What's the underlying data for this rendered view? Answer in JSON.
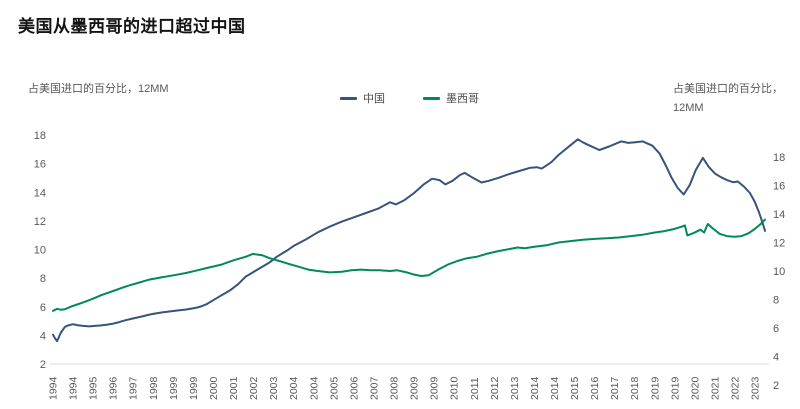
{
  "title": "美国从墨西哥的进口超过中国",
  "left_axis_caption": "占美国进口的百分比，12MM",
  "right_axis_caption": [
    "占美国进口的百分比，",
    "12MM"
  ],
  "legend": {
    "items": [
      {
        "label": "中国",
        "color": "#37547a"
      },
      {
        "label": "墨西哥",
        "color": "#008a5c"
      }
    ]
  },
  "colors": {
    "china_line": "#37547a",
    "mexico_line": "#008a5c",
    "axis_line": "#e2ded7",
    "tick_text": "#595959"
  },
  "chart_data": {
    "type": "line",
    "title": "美国从墨西哥的进口超过中国",
    "grid": false,
    "legend_position": "top-center",
    "x_axis": {
      "unit": "month",
      "start": "1994-01",
      "label_interval_months": 10,
      "tick_labels": [
        "1994",
        "1994",
        "1995",
        "1996",
        "1997",
        "1998",
        "1999",
        "1999",
        "2000",
        "2001",
        "2002",
        "2003",
        "2004",
        "2004",
        "2005",
        "2006",
        "2007",
        "2008",
        "2009",
        "2009",
        "2010",
        "2011",
        "2012",
        "2013",
        "2014",
        "2014",
        "2015",
        "2016",
        "2017",
        "2018",
        "2019",
        "2019",
        "2020",
        "2021",
        "2022",
        "2023"
      ]
    },
    "left_axis": {
      "caption": "占美国进口的百分比，12MM",
      "min": 2,
      "max": 18,
      "step": 2,
      "ticks": [
        2,
        4,
        6,
        8,
        10,
        12,
        14,
        16,
        18
      ]
    },
    "right_axis": {
      "caption": "占美国进口的百分比，12MM",
      "min": 2,
      "max": 18,
      "step": 2,
      "ticks": [
        2,
        4,
        6,
        8,
        10,
        12,
        14,
        16,
        18
      ],
      "offset_vs_left": true
    },
    "series": [
      {
        "name": "中国",
        "axis": "left",
        "color": "#37547a",
        "points": [
          [
            1994.0,
            4.05
          ],
          [
            1994.08,
            3.8
          ],
          [
            1994.17,
            3.6
          ],
          [
            1994.33,
            4.2
          ],
          [
            1994.5,
            4.6
          ],
          [
            1994.67,
            4.72
          ],
          [
            1994.83,
            4.78
          ],
          [
            1995.0,
            4.72
          ],
          [
            1995.25,
            4.66
          ],
          [
            1995.5,
            4.63
          ],
          [
            1995.75,
            4.66
          ],
          [
            1996.0,
            4.7
          ],
          [
            1996.25,
            4.75
          ],
          [
            1996.5,
            4.82
          ],
          [
            1996.75,
            4.93
          ],
          [
            1997.0,
            5.05
          ],
          [
            1997.25,
            5.15
          ],
          [
            1997.5,
            5.25
          ],
          [
            1997.75,
            5.35
          ],
          [
            1998.0,
            5.45
          ],
          [
            1998.25,
            5.53
          ],
          [
            1998.5,
            5.6
          ],
          [
            1998.75,
            5.65
          ],
          [
            1999.0,
            5.7
          ],
          [
            1999.25,
            5.75
          ],
          [
            1999.5,
            5.8
          ],
          [
            1999.75,
            5.87
          ],
          [
            2000.0,
            5.95
          ],
          [
            2000.2,
            6.05
          ],
          [
            2000.4,
            6.2
          ],
          [
            2000.65,
            6.45
          ],
          [
            2000.9,
            6.7
          ],
          [
            2001.15,
            6.95
          ],
          [
            2001.4,
            7.2
          ],
          [
            2001.7,
            7.6
          ],
          [
            2002.0,
            8.1
          ],
          [
            2002.25,
            8.35
          ],
          [
            2002.5,
            8.6
          ],
          [
            2002.75,
            8.85
          ],
          [
            2003.0,
            9.1
          ],
          [
            2003.3,
            9.5
          ],
          [
            2003.7,
            9.9
          ],
          [
            2004.0,
            10.25
          ],
          [
            2004.5,
            10.7
          ],
          [
            2005.0,
            11.2
          ],
          [
            2005.5,
            11.6
          ],
          [
            2006.0,
            11.95
          ],
          [
            2006.5,
            12.25
          ],
          [
            2007.0,
            12.55
          ],
          [
            2007.5,
            12.85
          ],
          [
            2008.0,
            13.3
          ],
          [
            2008.25,
            13.15
          ],
          [
            2008.6,
            13.45
          ],
          [
            2009.0,
            13.95
          ],
          [
            2009.4,
            14.55
          ],
          [
            2009.75,
            14.95
          ],
          [
            2010.05,
            14.85
          ],
          [
            2010.3,
            14.55
          ],
          [
            2010.6,
            14.8
          ],
          [
            2010.9,
            15.2
          ],
          [
            2011.1,
            15.35
          ],
          [
            2011.4,
            15.05
          ],
          [
            2011.8,
            14.68
          ],
          [
            2012.1,
            14.8
          ],
          [
            2012.5,
            15.0
          ],
          [
            2012.9,
            15.25
          ],
          [
            2013.3,
            15.45
          ],
          [
            2013.8,
            15.7
          ],
          [
            2014.1,
            15.75
          ],
          [
            2014.3,
            15.65
          ],
          [
            2014.7,
            16.1
          ],
          [
            2015.0,
            16.6
          ],
          [
            2015.4,
            17.15
          ],
          [
            2015.8,
            17.7
          ],
          [
            2016.0,
            17.5
          ],
          [
            2016.3,
            17.25
          ],
          [
            2016.7,
            16.95
          ],
          [
            2017.1,
            17.2
          ],
          [
            2017.6,
            17.55
          ],
          [
            2017.9,
            17.45
          ],
          [
            2018.2,
            17.5
          ],
          [
            2018.5,
            17.55
          ],
          [
            2018.9,
            17.25
          ],
          [
            2019.2,
            16.7
          ],
          [
            2019.45,
            15.9
          ],
          [
            2019.7,
            15.0
          ],
          [
            2019.95,
            14.3
          ],
          [
            2020.2,
            13.85
          ],
          [
            2020.45,
            14.5
          ],
          [
            2020.7,
            15.55
          ],
          [
            2021.0,
            16.4
          ],
          [
            2021.25,
            15.75
          ],
          [
            2021.5,
            15.3
          ],
          [
            2021.75,
            15.05
          ],
          [
            2022.0,
            14.85
          ],
          [
            2022.25,
            14.7
          ],
          [
            2022.45,
            14.75
          ],
          [
            2022.7,
            14.4
          ],
          [
            2022.95,
            13.95
          ],
          [
            2023.15,
            13.35
          ],
          [
            2023.33,
            12.6
          ],
          [
            2023.47,
            11.9
          ],
          [
            2023.58,
            11.3
          ]
        ]
      },
      {
        "name": "墨西哥",
        "axis": "right",
        "color": "#008a5c",
        "points": [
          [
            1994.0,
            7.2
          ],
          [
            1994.17,
            7.35
          ],
          [
            1994.33,
            7.28
          ],
          [
            1994.5,
            7.32
          ],
          [
            1994.75,
            7.5
          ],
          [
            1995.0,
            7.65
          ],
          [
            1995.25,
            7.8
          ],
          [
            1995.5,
            7.95
          ],
          [
            1995.75,
            8.12
          ],
          [
            1996.0,
            8.3
          ],
          [
            1996.25,
            8.45
          ],
          [
            1996.5,
            8.6
          ],
          [
            1996.75,
            8.75
          ],
          [
            1997.0,
            8.9
          ],
          [
            1997.25,
            9.03
          ],
          [
            1997.5,
            9.15
          ],
          [
            1997.75,
            9.28
          ],
          [
            1998.0,
            9.4
          ],
          [
            1998.5,
            9.55
          ],
          [
            1999.0,
            9.7
          ],
          [
            1999.5,
            9.85
          ],
          [
            2000.0,
            10.05
          ],
          [
            2000.5,
            10.25
          ],
          [
            2001.0,
            10.45
          ],
          [
            2001.5,
            10.75
          ],
          [
            2002.0,
            11.0
          ],
          [
            2002.3,
            11.2
          ],
          [
            2002.7,
            11.1
          ],
          [
            2003.0,
            10.9
          ],
          [
            2003.4,
            10.7
          ],
          [
            2003.8,
            10.5
          ],
          [
            2004.2,
            10.3
          ],
          [
            2004.6,
            10.1
          ],
          [
            2005.0,
            10.0
          ],
          [
            2005.5,
            9.9
          ],
          [
            2006.0,
            9.95
          ],
          [
            2006.4,
            10.05
          ],
          [
            2006.8,
            10.1
          ],
          [
            2007.2,
            10.05
          ],
          [
            2007.6,
            10.05
          ],
          [
            2008.0,
            10.0
          ],
          [
            2008.3,
            10.05
          ],
          [
            2008.7,
            9.9
          ],
          [
            2009.0,
            9.75
          ],
          [
            2009.3,
            9.65
          ],
          [
            2009.6,
            9.7
          ],
          [
            2010.0,
            10.1
          ],
          [
            2010.4,
            10.45
          ],
          [
            2010.8,
            10.7
          ],
          [
            2011.2,
            10.9
          ],
          [
            2011.6,
            11.0
          ],
          [
            2012.0,
            11.2
          ],
          [
            2012.5,
            11.4
          ],
          [
            2013.0,
            11.55
          ],
          [
            2013.3,
            11.65
          ],
          [
            2013.6,
            11.6
          ],
          [
            2014.0,
            11.7
          ],
          [
            2014.5,
            11.8
          ],
          [
            2015.0,
            12.0
          ],
          [
            2015.5,
            12.1
          ],
          [
            2016.0,
            12.2
          ],
          [
            2016.5,
            12.25
          ],
          [
            2017.0,
            12.3
          ],
          [
            2017.5,
            12.35
          ],
          [
            2018.0,
            12.45
          ],
          [
            2018.5,
            12.55
          ],
          [
            2019.0,
            12.7
          ],
          [
            2019.4,
            12.8
          ],
          [
            2019.8,
            12.95
          ],
          [
            2020.1,
            13.1
          ],
          [
            2020.25,
            13.2
          ],
          [
            2020.35,
            12.5
          ],
          [
            2020.6,
            12.65
          ],
          [
            2020.9,
            12.9
          ],
          [
            2021.05,
            12.7
          ],
          [
            2021.2,
            13.3
          ],
          [
            2021.4,
            13.0
          ],
          [
            2021.7,
            12.6
          ],
          [
            2022.0,
            12.45
          ],
          [
            2022.3,
            12.4
          ],
          [
            2022.6,
            12.45
          ],
          [
            2022.9,
            12.65
          ],
          [
            2023.15,
            12.95
          ],
          [
            2023.4,
            13.3
          ],
          [
            2023.58,
            13.6
          ]
        ]
      }
    ]
  }
}
